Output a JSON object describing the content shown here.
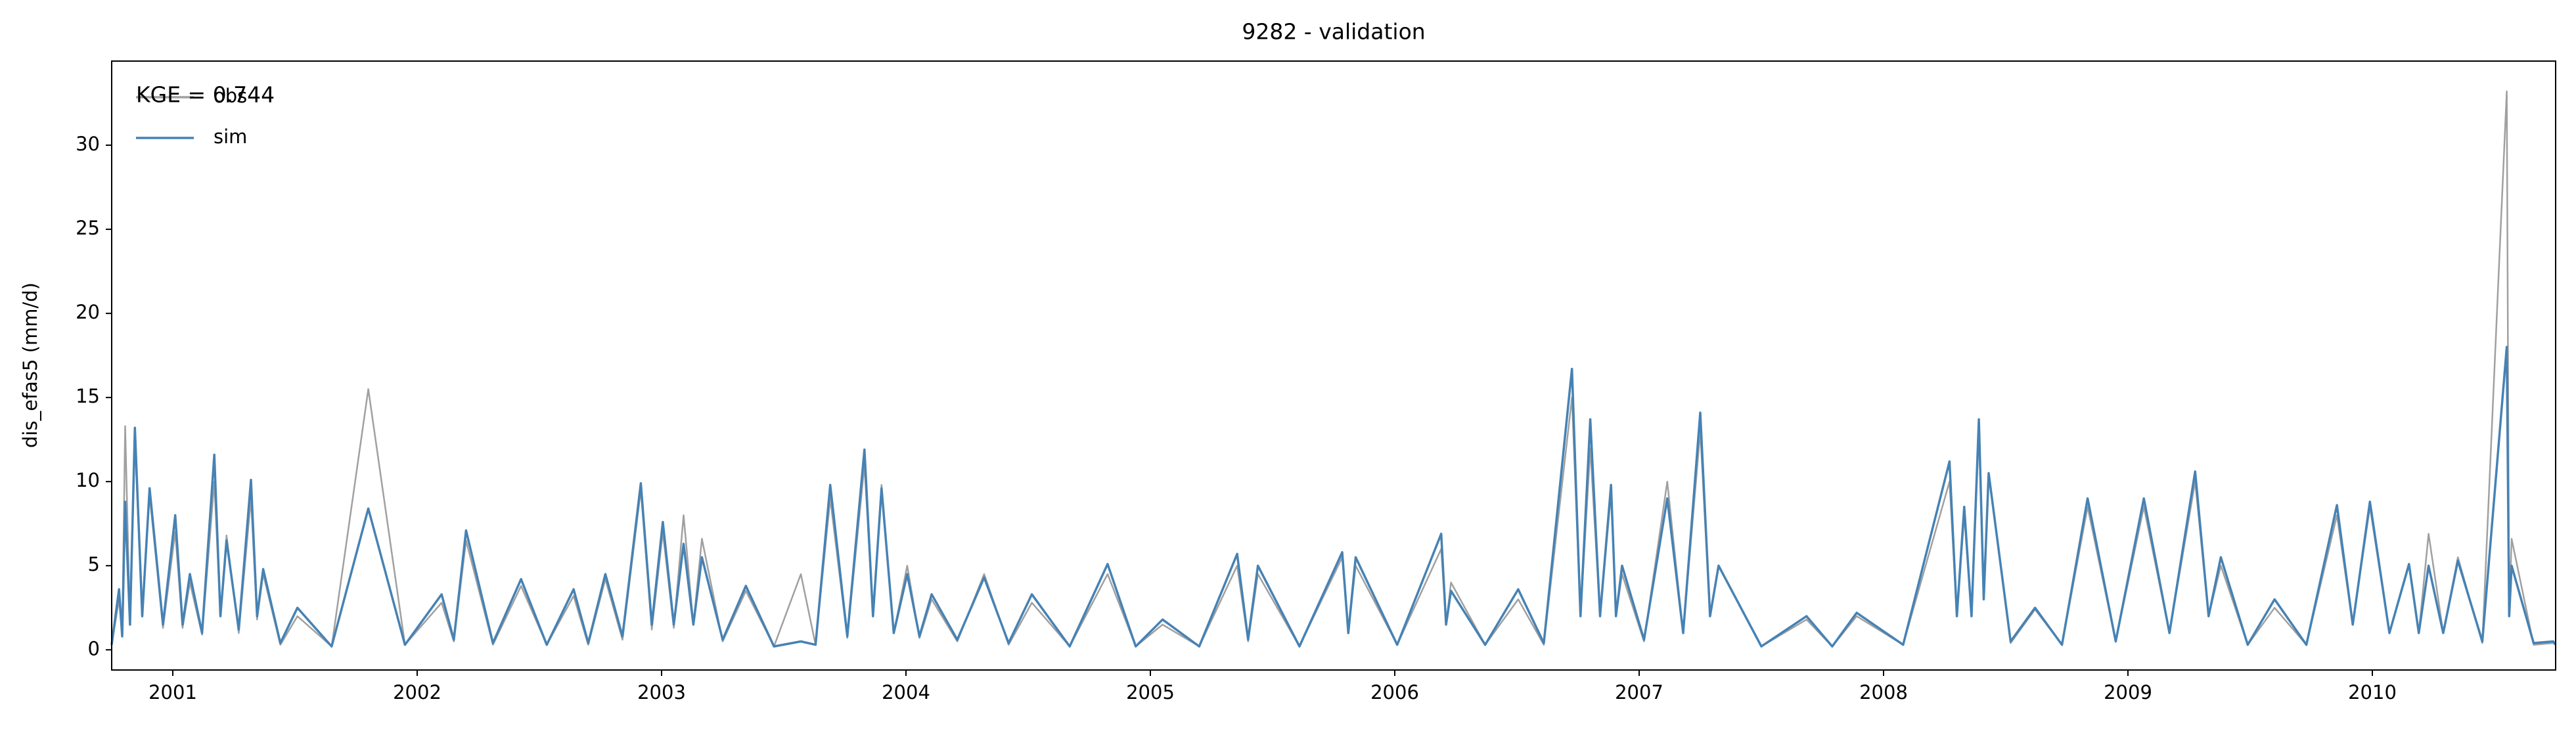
{
  "chart_data": {
    "type": "line",
    "title": "9282 - validation",
    "ylabel": "dis_efas5 (mm/d)",
    "annotation": "KGE = 0.744",
    "legend": "upper left",
    "x": [
      2000.75,
      2000.78,
      2000.793,
      2000.805,
      2000.825,
      2000.845,
      2000.875,
      2000.905,
      2000.96,
      2001.01,
      2001.04,
      2001.07,
      2001.12,
      2001.17,
      2001.195,
      2001.22,
      2001.27,
      2001.32,
      2001.345,
      2001.37,
      2001.44,
      2001.51,
      2001.65,
      2001.8,
      2001.95,
      2002.1,
      2002.15,
      2002.2,
      2002.31,
      2002.425,
      2002.53,
      2002.64,
      2002.7,
      2002.77,
      2002.84,
      2002.915,
      2002.96,
      2003.005,
      2003.05,
      2003.09,
      2003.13,
      2003.165,
      2003.25,
      2003.345,
      2003.46,
      2003.57,
      2003.63,
      2003.69,
      2003.76,
      2003.83,
      2003.865,
      2003.9,
      2003.95,
      2004.005,
      2004.055,
      2004.105,
      2004.21,
      2004.32,
      2004.42,
      2004.515,
      2004.67,
      2004.825,
      2004.94,
      2005.05,
      2005.2,
      2005.355,
      2005.4,
      2005.44,
      2005.61,
      2005.785,
      2005.81,
      2005.84,
      2006.01,
      2006.19,
      2006.21,
      2006.23,
      2006.37,
      2006.505,
      2006.61,
      2006.725,
      2006.76,
      2006.8,
      2006.84,
      2006.885,
      2006.905,
      2006.93,
      2007.02,
      2007.115,
      2007.18,
      2007.25,
      2007.29,
      2007.325,
      2007.5,
      2007.685,
      2007.79,
      2007.89,
      2008.08,
      2008.27,
      2008.3,
      2008.33,
      2008.36,
      2008.39,
      2008.41,
      2008.43,
      2008.52,
      2008.62,
      2008.73,
      2008.835,
      2008.95,
      2009.065,
      2009.17,
      2009.275,
      2009.33,
      2009.38,
      2009.49,
      2009.6,
      2009.73,
      2009.855,
      2009.92,
      2009.99,
      2010.07,
      2010.15,
      2010.19,
      2010.23,
      2010.29,
      2010.35,
      2010.45,
      2010.55,
      2010.56,
      2010.57,
      2010.66,
      2010.74,
      2010.75
    ],
    "series": [
      {
        "name": "obs",
        "color": "#a0a0a0",
        "values": [
          0.3,
          3.0,
          0.8,
          13.3,
          1.5,
          12.5,
          2,
          9.2,
          1.3,
          7,
          1.3,
          4,
          0.9,
          10,
          2,
          6.8,
          1,
          9,
          1.8,
          4.5,
          0.3,
          2,
          0.2,
          15.5,
          0.3,
          2.8,
          0.5,
          6.5,
          0.3,
          3.8,
          0.3,
          3.2,
          0.3,
          4.2,
          0.6,
          9.5,
          1.2,
          7,
          1.3,
          8,
          1.5,
          6.6,
          0.5,
          3.5,
          0.2,
          4.5,
          0.3,
          9,
          0.7,
          11,
          2,
          9.8,
          1,
          5,
          0.7,
          3,
          0.5,
          4.5,
          0.3,
          2.8,
          0.2,
          4.5,
          0.2,
          1.5,
          0.2,
          5,
          0.5,
          4.5,
          0.2,
          5.5,
          1,
          5,
          0.3,
          6,
          1.5,
          4,
          0.3,
          3,
          0.3,
          15,
          2,
          12,
          2,
          9.3,
          2,
          4.5,
          0.5,
          10,
          1,
          13,
          2,
          5,
          0.2,
          1.8,
          0.2,
          2,
          0.3,
          10,
          2,
          8,
          2,
          13,
          3,
          10.5,
          0.4,
          2.4,
          0.3,
          8.5,
          0.5,
          8.5,
          1,
          10,
          2,
          5,
          0.3,
          2.5,
          0.3,
          8,
          1.5,
          8.5,
          1,
          5,
          1,
          6.9,
          1,
          5.5,
          0.4,
          33.2,
          2,
          6.6,
          0.3,
          0.4,
          0.3
        ]
      },
      {
        "name": "sim",
        "color": "#4682b4",
        "values": [
          0.3,
          3.6,
          0.8,
          8.8,
          1.5,
          13.2,
          2,
          9.6,
          1.5,
          8,
          1.5,
          4.5,
          1,
          11.6,
          2,
          6.5,
          1.2,
          10.1,
          2,
          4.8,
          0.4,
          2.5,
          0.2,
          8.4,
          0.3,
          3.3,
          0.6,
          7.1,
          0.4,
          4.2,
          0.3,
          3.6,
          0.4,
          4.5,
          0.8,
          9.9,
          1.5,
          7.6,
          1.5,
          6.3,
          1.5,
          5.5,
          0.6,
          3.8,
          0.2,
          0.5,
          0.3,
          9.8,
          0.8,
          11.9,
          2,
          9.6,
          1,
          4.5,
          0.8,
          3.3,
          0.6,
          4.3,
          0.4,
          3.3,
          0.2,
          5.1,
          0.2,
          1.8,
          0.2,
          5.7,
          0.6,
          5,
          0.2,
          5.8,
          1,
          5.5,
          0.3,
          6.9,
          1.5,
          3.5,
          0.3,
          3.6,
          0.4,
          16.7,
          2,
          13.7,
          2,
          9.8,
          2,
          5,
          0.6,
          9,
          1,
          14.1,
          2,
          5,
          0.2,
          2,
          0.2,
          2.2,
          0.3,
          11.2,
          2,
          8.5,
          2,
          13.7,
          3,
          10.5,
          0.5,
          2.5,
          0.3,
          9,
          0.5,
          9,
          1,
          10.6,
          2,
          5.5,
          0.3,
          3,
          0.3,
          8.6,
          1.5,
          8.8,
          1,
          5.1,
          1,
          5,
          1,
          5.3,
          0.5,
          18,
          2,
          5,
          0.4,
          0.5,
          0.3
        ]
      }
    ],
    "xlim": [
      2000.75,
      2010.75
    ],
    "xticks": [
      2001,
      2002,
      2003,
      2004,
      2005,
      2006,
      2007,
      2008,
      2009,
      2010
    ],
    "ylim": [
      -1.2,
      35
    ],
    "yticks": [
      0,
      5,
      10,
      15,
      20,
      25,
      30
    ]
  }
}
